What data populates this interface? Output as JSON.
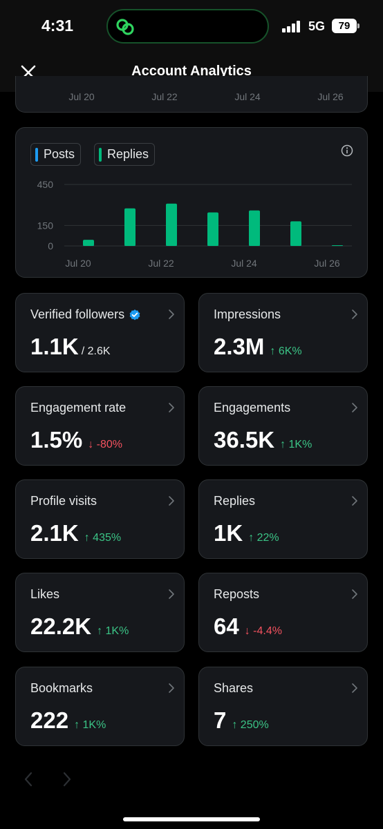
{
  "status": {
    "time": "4:31",
    "network": "5G",
    "battery": "79"
  },
  "header": {
    "title": "Account Analytics"
  },
  "prev_chart": {
    "x_labels": [
      "Jul 20",
      "Jul 22",
      "Jul 24",
      "Jul 26"
    ]
  },
  "chart_data": {
    "type": "bar",
    "legend": [
      {
        "label": "Posts",
        "color": "#1d9bf0"
      },
      {
        "label": "Replies",
        "color": "#00ba7c"
      }
    ],
    "x_tick_labels": [
      "Jul 20",
      "Jul 22",
      "Jul 24",
      "Jul 26"
    ],
    "y_tick_labels": [
      "450",
      "150",
      "0"
    ],
    "y_ticks": [
      450,
      150,
      0
    ],
    "ylim": [
      0,
      450
    ],
    "categories": [
      "Jul 20",
      "Jul 21",
      "Jul 22",
      "Jul 23",
      "Jul 24",
      "Jul 25",
      "Jul 26"
    ],
    "series": [
      {
        "name": "Posts",
        "color": "#1d9bf0",
        "values": [
          0,
          0,
          0,
          0,
          0,
          0,
          0
        ]
      },
      {
        "name": "Replies",
        "color": "#00ba7c",
        "values": [
          45,
          275,
          310,
          245,
          260,
          180,
          0
        ]
      }
    ],
    "grid": true
  },
  "metrics": [
    {
      "label": "Verified followers",
      "value": "1.1K",
      "sub": "/ 2.6K",
      "change": "",
      "direction": "",
      "verified": true
    },
    {
      "label": "Impressions",
      "value": "2.3M",
      "sub": "",
      "change": "↑ 6K%",
      "direction": "up"
    },
    {
      "label": "Engagement rate",
      "value": "1.5%",
      "sub": "",
      "change": "↓ -80%",
      "direction": "down"
    },
    {
      "label": "Engagements",
      "value": "36.5K",
      "sub": "",
      "change": "↑ 1K%",
      "direction": "up"
    },
    {
      "label": "Profile visits",
      "value": "2.1K",
      "sub": "",
      "change": "↑ 435%",
      "direction": "up"
    },
    {
      "label": "Replies",
      "value": "1K",
      "sub": "",
      "change": "↑ 22%",
      "direction": "up"
    },
    {
      "label": "Likes",
      "value": "22.2K",
      "sub": "",
      "change": "↑ 1K%",
      "direction": "up"
    },
    {
      "label": "Reposts",
      "value": "64",
      "sub": "",
      "change": "↓ -4.4%",
      "direction": "down"
    },
    {
      "label": "Bookmarks",
      "value": "222",
      "sub": "",
      "change": "↑ 1K%",
      "direction": "up"
    },
    {
      "label": "Shares",
      "value": "7",
      "sub": "",
      "change": "↑ 250%",
      "direction": "up"
    }
  ],
  "icons": {
    "close": "close-icon",
    "info": "info-icon",
    "chevron": "chevron-right-icon",
    "verified": "verified-badge-icon",
    "pager_prev": "chevron-left-icon",
    "pager_next": "chevron-right-icon"
  }
}
